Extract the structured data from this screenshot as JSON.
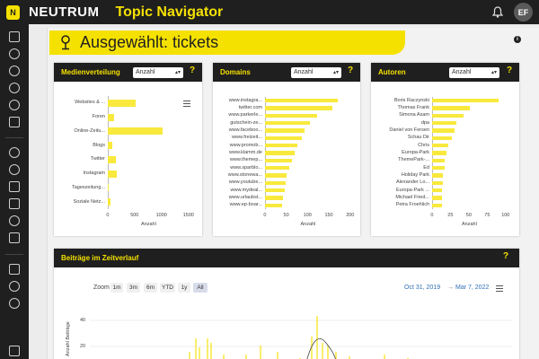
{
  "app": {
    "logo_letter": "N",
    "brand": "NEUTRUM",
    "title": "Topic Navigator",
    "avatar": "EF"
  },
  "banner": {
    "text": "Ausgewählt: tickets"
  },
  "selects": {
    "value": "Anzahl"
  },
  "cards": {
    "medien": {
      "title": "Medienverteilung",
      "help": "?"
    },
    "domains": {
      "title": "Domains",
      "help": "?"
    },
    "autoren": {
      "title": "Autoren",
      "help": "?"
    },
    "zeitverlauf": {
      "title": "Beiträge im Zeitverlauf",
      "help": "?"
    }
  },
  "colors": {
    "accent": "#f5e100",
    "bar": "#f8e93c",
    "dark": "#1f1f1f"
  },
  "chart_data": [
    {
      "type": "bar",
      "orientation": "horizontal",
      "categories": [
        "Websites & ...",
        "Foren",
        "Online-Zeitu...",
        "Blogs",
        "Twitter",
        "Instagram",
        "Tageszeitung...",
        "Soziale Netz..."
      ],
      "values": [
        510,
        120,
        1010,
        90,
        150,
        170,
        10,
        45
      ],
      "xticks": [
        "0",
        "500",
        "1000",
        "1500"
      ],
      "xlim": [
        0,
        1500
      ],
      "xlabel": "Anzahl"
    },
    {
      "type": "bar",
      "orientation": "horizontal",
      "categories": [
        "www.instagra...",
        "twitter.com",
        "www.parkerle...",
        "gutschein-ze...",
        "www.faceboo...",
        "www.freizeit...",
        "www.promob...",
        "www.klamm.de",
        "www.themep...",
        "www.sparblo...",
        "www.stonewa...",
        "www.youtube...",
        "www.mydeal...",
        "www.urlaubst...",
        "www.ep-boar..."
      ],
      "values": [
        171,
        158,
        123,
        106,
        92,
        87,
        76,
        70,
        63,
        56,
        51,
        49,
        46,
        42,
        39
      ],
      "xticks": [
        "0",
        "50",
        "100",
        "150",
        "200"
      ],
      "xlim": [
        0,
        200
      ],
      "xlabel": "Anzahl"
    },
    {
      "type": "bar",
      "orientation": "horizontal",
      "categories": [
        "Boris Raczynski",
        "Thomas Frank",
        "Simona Asam",
        "dpa",
        "Daniel von Fersen",
        "Schau Dir",
        "Chris",
        "Europa-Park",
        "ThemePark-...",
        "Ed",
        "Holiday Park",
        "Alexander Lo...",
        "Europa-Park ...",
        "Michael Fried...",
        "Petra Froehlich"
      ],
      "values": [
        90,
        51,
        43,
        33,
        30,
        27,
        22,
        19,
        17,
        17,
        15,
        15,
        14,
        13,
        13
      ],
      "xticks": [
        "0",
        "25",
        "50",
        "75",
        "100"
      ],
      "xlim": [
        0,
        100
      ],
      "xlabel": "Anzahl"
    }
  ],
  "timeline": {
    "zoom_label": "Zoom",
    "zoom_buttons": [
      "1m",
      "3m",
      "6m",
      "YTD",
      "1y",
      "All"
    ],
    "date_from": "Oct 31, 2019",
    "date_arrow": "→",
    "date_to": "Mar 7, 2022",
    "yticks": [
      "40",
      "20"
    ],
    "ylabel": "Anzahl Beiträge"
  }
}
